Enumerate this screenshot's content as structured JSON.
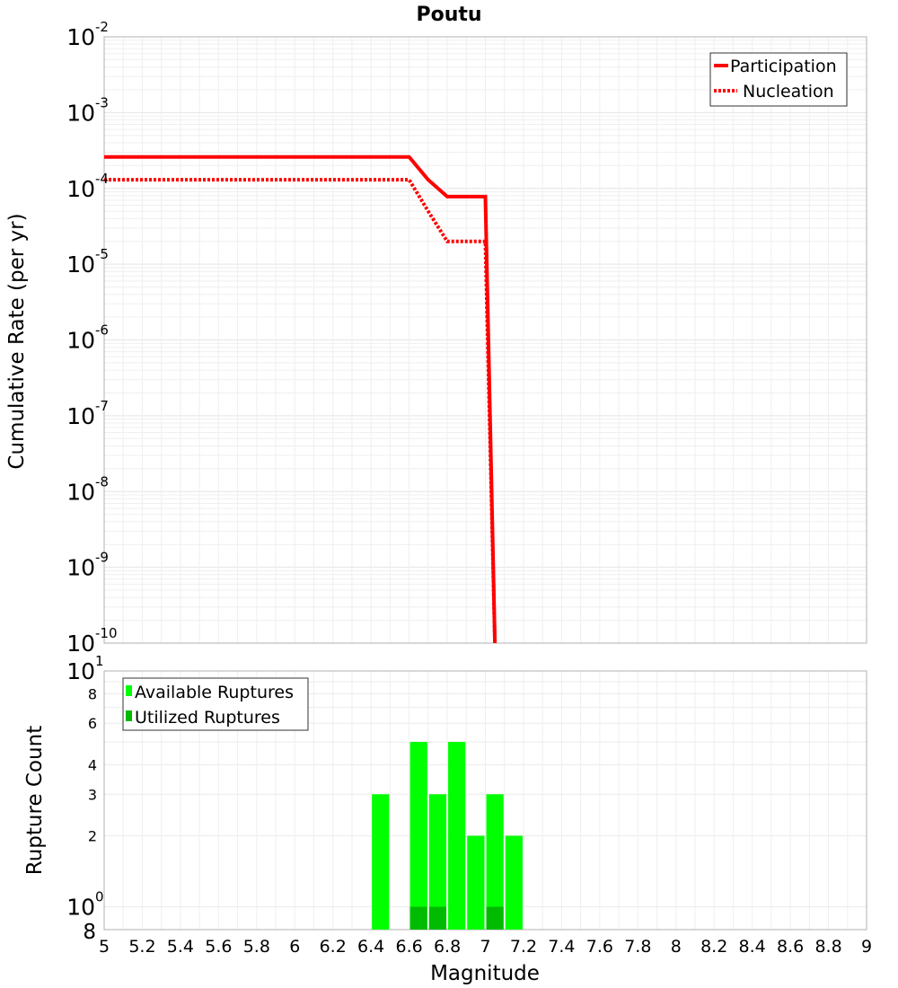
{
  "chart_data": [
    {
      "type": "line",
      "title": "Poutu",
      "ylabel": "Cumulative Rate (per yr)",
      "y_scale": "log",
      "ylim": [
        1e-10,
        0.01
      ],
      "xlim": [
        5,
        9
      ],
      "y_ticks": [
        {
          "base": "10",
          "exp": "-2"
        },
        {
          "base": "10",
          "exp": "-3"
        },
        {
          "base": "10",
          "exp": "-4"
        },
        {
          "base": "10",
          "exp": "-5"
        },
        {
          "base": "10",
          "exp": "-6"
        },
        {
          "base": "10",
          "exp": "-7"
        },
        {
          "base": "10",
          "exp": "-8"
        },
        {
          "base": "10",
          "exp": "-9"
        },
        {
          "base": "10",
          "exp": "-10"
        }
      ],
      "grid": true,
      "legend_position": "top-right",
      "series": [
        {
          "name": "Participation",
          "style": "solid",
          "color": "#ff0000",
          "x": [
            5.0,
            6.6,
            6.7,
            6.8,
            6.9,
            7.0,
            7.05
          ],
          "y": [
            0.00026,
            0.00026,
            0.00013,
            7.8e-05,
            7.8e-05,
            7.8e-05,
            1e-10
          ]
        },
        {
          "name": "Nucleation",
          "style": "dotted",
          "color": "#ff0000",
          "x": [
            5.0,
            6.6,
            6.7,
            6.8,
            6.9,
            7.0,
            7.05
          ],
          "y": [
            0.00013,
            0.00013,
            5e-05,
            2e-05,
            2e-05,
            2e-05,
            1e-10
          ]
        }
      ]
    },
    {
      "type": "bar",
      "ylabel": "Rupture Count",
      "xlabel": "Magnitude",
      "y_scale": "log",
      "ylim": [
        0.8,
        10
      ],
      "xlim": [
        5,
        9
      ],
      "bar_width": 0.1,
      "x_ticks": [
        "5",
        "5.2",
        "5.4",
        "5.6",
        "5.8",
        "6",
        "6.2",
        "6.4",
        "6.6",
        "6.8",
        "7",
        "7.2",
        "7.4",
        "7.6",
        "7.8",
        "8",
        "8.2",
        "8.4",
        "8.6",
        "8.8",
        "9"
      ],
      "y_ticks_major": [
        {
          "value": 10,
          "base": "10",
          "exp": "1"
        },
        {
          "value": 1,
          "base": "10",
          "exp": "0"
        }
      ],
      "y_ticks_minor": [
        {
          "value": 8,
          "label": "8"
        },
        {
          "value": 6,
          "label": "6"
        },
        {
          "value": 4,
          "label": "4"
        },
        {
          "value": 3,
          "label": "3"
        },
        {
          "value": 2,
          "label": "2"
        }
      ],
      "y_axis_bottom_label": "8",
      "grid": true,
      "legend_position": "top-left",
      "series": [
        {
          "name": "Available Ruptures",
          "color": "#00ff00",
          "x": [
            6.45,
            6.65,
            6.75,
            6.85,
            6.95,
            7.05,
            7.15
          ],
          "values": [
            3,
            5,
            3,
            5,
            2,
            3,
            2
          ]
        },
        {
          "name": "Utilized Ruptures",
          "color": "#00bb00",
          "x": [
            6.65,
            6.75,
            7.05
          ],
          "values": [
            1,
            1,
            1
          ]
        }
      ]
    }
  ]
}
